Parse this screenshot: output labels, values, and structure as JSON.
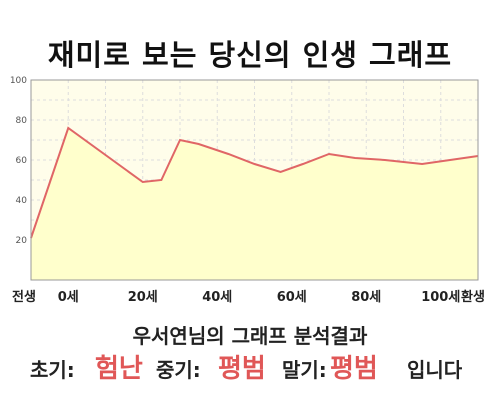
{
  "page": {
    "title": "재미로 보는 당신의 인생 그래프"
  },
  "chart_data": {
    "type": "area",
    "title": "재미로 보는 당신의 인생 그래프",
    "xlabel": "",
    "ylabel": "",
    "xlim": [
      -10,
      110
    ],
    "ylim": [
      0,
      100
    ],
    "y_ticks": [
      20,
      40,
      60,
      80,
      100
    ],
    "x_ticks": [
      {
        "x": -10,
        "label": "전생"
      },
      {
        "x": 0,
        "label": "0세"
      },
      {
        "x": 20,
        "label": "20세"
      },
      {
        "x": 40,
        "label": "40세"
      },
      {
        "x": 60,
        "label": "60세"
      },
      {
        "x": 80,
        "label": "80세"
      },
      {
        "x": 100,
        "label": "100세"
      },
      {
        "x": 110,
        "label": "환생"
      }
    ],
    "grid": true,
    "legend": "none",
    "series": [
      {
        "x": [
          -10,
          0,
          20,
          25,
          30,
          35,
          43,
          50,
          57,
          63,
          70,
          77,
          85,
          95,
          110
        ],
        "values": [
          21,
          76,
          49,
          50,
          70,
          68,
          63,
          58,
          54,
          58,
          63,
          61,
          60,
          58,
          62
        ]
      }
    ],
    "colors": {
      "line": "#e06666",
      "fill": "#ffffcc",
      "plot_bg": "#fffdea",
      "grid": "#dddddd"
    }
  },
  "result": {
    "heading": "우서연님의 그래프 분석결과",
    "early_label": "초기:",
    "early_value": "험난",
    "mid_label": "중기:",
    "mid_value": "평범",
    "late_label": "말기:",
    "late_value": "평범",
    "ending": "입니다"
  }
}
